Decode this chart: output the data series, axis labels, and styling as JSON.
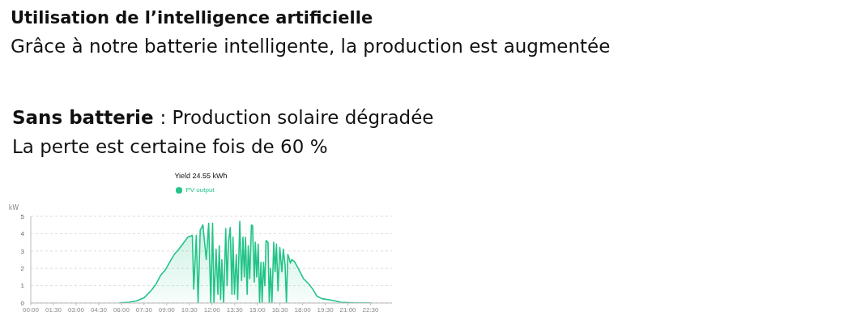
{
  "chart_data": {
    "type": "area",
    "title": "Utilisation de l’intelligence artificielle",
    "subtitle": "Grâce à notre batterie intelligente, la production est augmentée",
    "annotations": [
      "Sans batterie : Production solaire dégradée",
      "La perte est certaine fois de 60 %",
      "Yield 24.55 kWh"
    ],
    "ylabel": "kW",
    "legend": "top",
    "grid": "y",
    "marker": "none",
    "line_style": "solid",
    "xlim": [
      0,
      23.92
    ],
    "ylim": [
      0,
      5
    ],
    "yticks": [
      0,
      1,
      2,
      3,
      4,
      5
    ],
    "xticks": [
      {
        "value": 0,
        "label": "00:00"
      },
      {
        "value": 1.5,
        "label": "01:30"
      },
      {
        "value": 3,
        "label": "03:00"
      },
      {
        "value": 4.5,
        "label": "04:30"
      },
      {
        "value": 6,
        "label": "06:00"
      },
      {
        "value": 7.5,
        "label": "07:30"
      },
      {
        "value": 9,
        "label": "09:00"
      },
      {
        "value": 10.5,
        "label": "10:30"
      },
      {
        "value": 12,
        "label": "12:00"
      },
      {
        "value": 13.5,
        "label": "13:30"
      },
      {
        "value": 15,
        "label": "15:00"
      },
      {
        "value": 16.5,
        "label": "16:30"
      },
      {
        "value": 18,
        "label": "18:00"
      },
      {
        "value": 19.5,
        "label": "19:30"
      },
      {
        "value": 21,
        "label": "21:00"
      },
      {
        "value": 22.5,
        "label": "22:30"
      }
    ],
    "series": [
      {
        "name": "PV output",
        "color": "#22c487",
        "x": [
          5.85,
          6.0,
          6.5,
          7.0,
          7.5,
          8.0,
          8.3,
          8.6,
          8.9,
          9.2,
          9.5,
          9.8,
          10.1,
          10.4,
          10.7,
          10.79,
          10.96,
          11.08,
          11.22,
          11.4,
          11.62,
          11.78,
          11.92,
          12.04,
          12.13,
          12.27,
          12.39,
          12.48,
          12.57,
          12.65,
          12.77,
          12.91,
          13.0,
          13.09,
          13.21,
          13.32,
          13.39,
          13.49,
          13.61,
          13.7,
          13.84,
          13.96,
          14.05,
          14.14,
          14.22,
          14.33,
          14.4,
          14.5,
          14.61,
          14.69,
          14.8,
          14.87,
          14.96,
          15.06,
          15.15,
          15.24,
          15.32,
          15.41,
          15.5,
          15.58,
          15.71,
          15.79,
          15.88,
          15.97,
          16.09,
          16.18,
          16.27,
          16.37,
          16.49,
          16.63,
          16.72,
          16.84,
          16.93,
          17.02,
          17.1,
          17.19,
          17.28,
          17.45,
          17.71,
          18.06,
          18.41,
          18.67,
          18.94,
          19.28,
          19.98,
          20.51,
          21.03,
          21.55,
          22.5
        ],
        "values": [
          0,
          0.01,
          0.05,
          0.12,
          0.3,
          0.75,
          1.1,
          1.6,
          1.9,
          2.35,
          2.8,
          3.1,
          3.45,
          3.8,
          3.9,
          0.8,
          3.9,
          0,
          4.2,
          4.5,
          2.5,
          4.6,
          0,
          4.6,
          0,
          3.1,
          0.5,
          3.3,
          0.2,
          2.5,
          0,
          4.3,
          1,
          3.5,
          4.35,
          0.5,
          3.8,
          0.5,
          2.8,
          0.2,
          4.7,
          1.3,
          3.8,
          1.5,
          3.8,
          0.5,
          3.3,
          1.4,
          4.5,
          4.45,
          1.2,
          3.5,
          1.5,
          3.4,
          0,
          2.35,
          0,
          2.35,
          1,
          3.6,
          3.5,
          0,
          2.0,
          0,
          3.5,
          1.8,
          3.4,
          0.7,
          3.2,
          1.8,
          3.1,
          2.2,
          0,
          2.8,
          2.6,
          2.3,
          2.5,
          2.4,
          2.0,
          1.4,
          1.1,
          0.8,
          0.4,
          0.25,
          0.15,
          0.05,
          0.02,
          0,
          0
        ]
      }
    ]
  }
}
